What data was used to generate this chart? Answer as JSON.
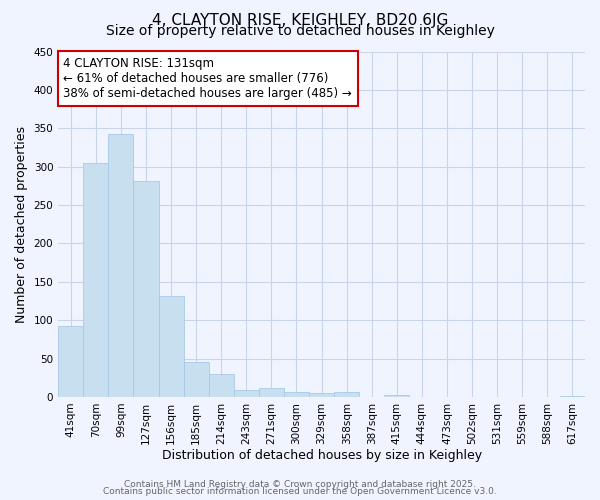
{
  "title": "4, CLAYTON RISE, KEIGHLEY, BD20 6JG",
  "subtitle": "Size of property relative to detached houses in Keighley",
  "xlabel": "Distribution of detached houses by size in Keighley",
  "ylabel": "Number of detached properties",
  "bar_color": "#c8dff0",
  "bar_edge_color": "#a8c8e8",
  "categories": [
    "41sqm",
    "70sqm",
    "99sqm",
    "127sqm",
    "156sqm",
    "185sqm",
    "214sqm",
    "243sqm",
    "271sqm",
    "300sqm",
    "329sqm",
    "358sqm",
    "387sqm",
    "415sqm",
    "444sqm",
    "473sqm",
    "502sqm",
    "531sqm",
    "559sqm",
    "588sqm",
    "617sqm"
  ],
  "values": [
    93,
    305,
    343,
    281,
    132,
    46,
    30,
    9,
    12,
    7,
    5,
    7,
    0,
    2,
    0,
    0,
    0,
    0,
    0,
    0,
    1
  ],
  "ylim": [
    0,
    450
  ],
  "yticks": [
    0,
    50,
    100,
    150,
    200,
    250,
    300,
    350,
    400,
    450
  ],
  "annotation_line1": "4 CLAYTON RISE: 131sqm",
  "annotation_line2": "← 61% of detached houses are smaller (776)",
  "annotation_line3": "38% of semi-detached houses are larger (485) →",
  "annotation_box_color": "#ffffff",
  "annotation_box_edge_color": "#cc0000",
  "bg_color": "#f0f4ff",
  "grid_color": "#c8d4e8",
  "footer_line1": "Contains HM Land Registry data © Crown copyright and database right 2025.",
  "footer_line2": "Contains public sector information licensed under the Open Government Licence v3.0.",
  "title_fontsize": 11,
  "subtitle_fontsize": 10,
  "axis_label_fontsize": 9,
  "tick_fontsize": 7.5,
  "annotation_fontsize": 8.5,
  "footer_fontsize": 6.5
}
